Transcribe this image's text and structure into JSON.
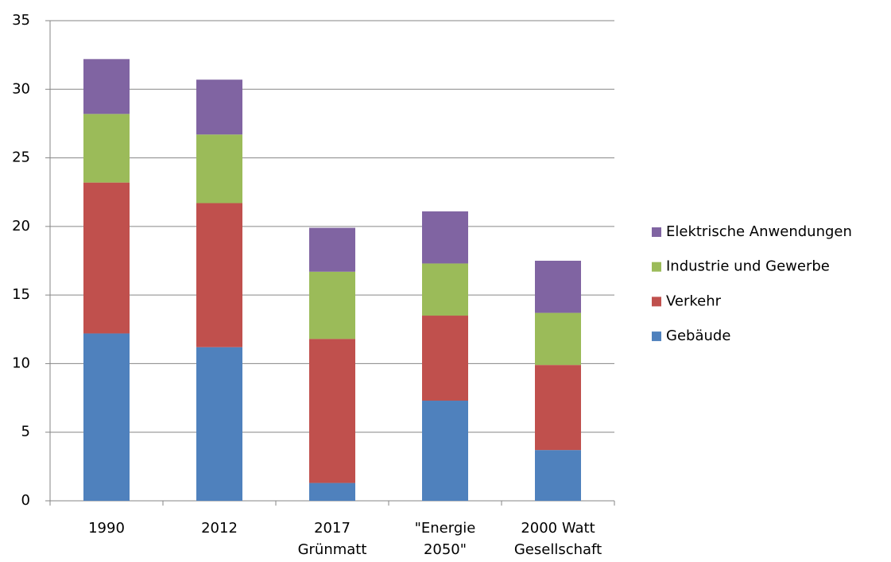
{
  "chart_data": {
    "type": "stacked_bar",
    "categories": [
      [
        "1990"
      ],
      [
        "2012"
      ],
      [
        "2017",
        "Grünmatt"
      ],
      [
        "\"Energie",
        "2050\""
      ],
      [
        "2000 Watt",
        "Gesellschaft"
      ]
    ],
    "series": [
      {
        "name": "Gebäude",
        "color": "#4f81bd",
        "values": [
          12.2,
          11.2,
          1.3,
          7.3,
          3.7
        ]
      },
      {
        "name": "Verkehr",
        "color": "#c0504d",
        "values": [
          11.0,
          10.5,
          10.5,
          6.2,
          6.2
        ]
      },
      {
        "name": "Industrie und Gewerbe",
        "color": "#9bbb59",
        "values": [
          5.0,
          5.0,
          4.9,
          3.8,
          3.8
        ]
      },
      {
        "name": "Elektrische Anwendungen",
        "color": "#8064a2",
        "values": [
          4.0,
          4.0,
          3.2,
          3.8,
          3.8
        ]
      }
    ],
    "ylim": [
      0,
      35
    ],
    "yticks": [
      0,
      5,
      10,
      15,
      20,
      25,
      30,
      35
    ],
    "grid": true,
    "legend": "right"
  }
}
